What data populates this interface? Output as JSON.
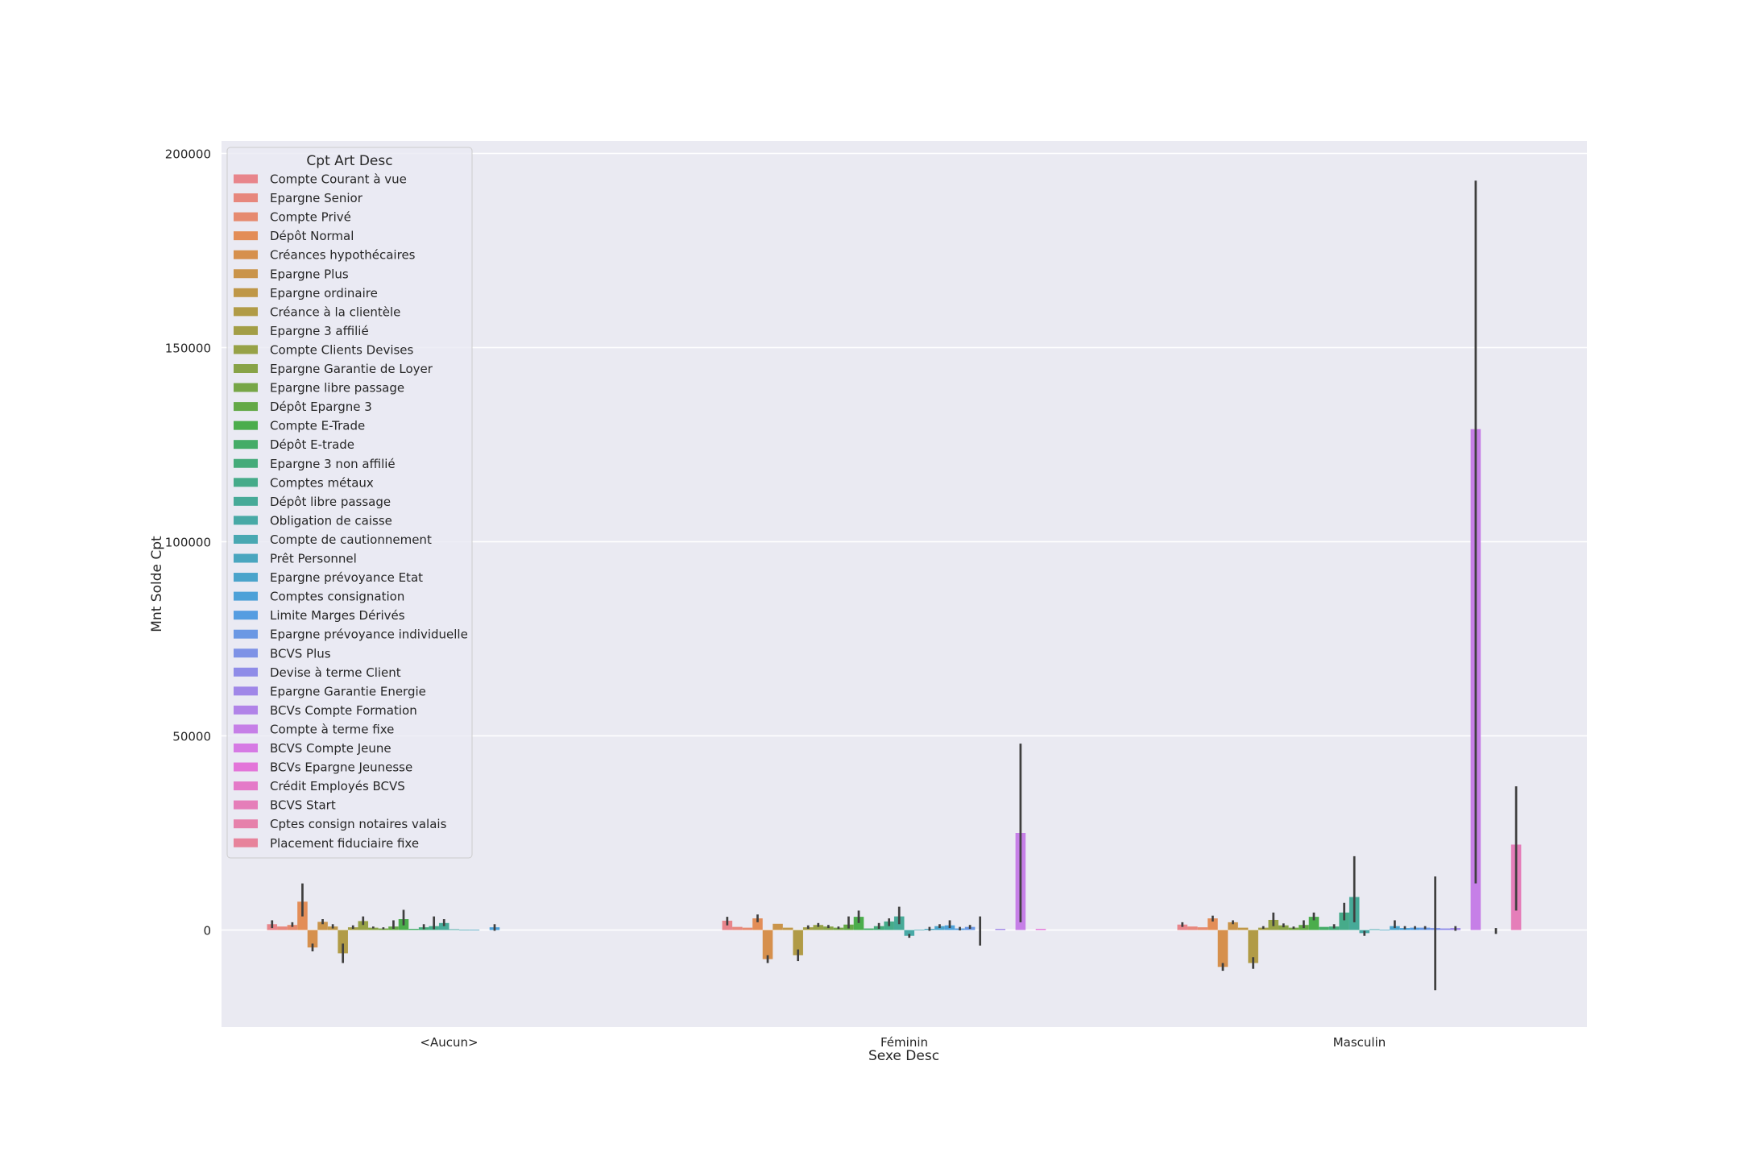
{
  "chart_data": {
    "type": "bar",
    "xlabel": "Sexe Desc",
    "ylabel": "Mnt Solde Cpt",
    "ylim": [
      -25000,
      200000
    ],
    "yticks": [
      0,
      50000,
      100000,
      150000,
      200000
    ],
    "categories": [
      "<Aucun>",
      "Féminin",
      "Masculin"
    ],
    "grid": true,
    "legend_title": "Cpt Art Desc",
    "legend_position": "top-left",
    "series": [
      {
        "name": "Compte Courant à vue",
        "color": "#e8858b",
        "values": [
          1500,
          2400,
          1400
        ],
        "err": [
          [
            500,
            2500
          ],
          [
            1200,
            3400
          ],
          [
            800,
            2000
          ]
        ]
      },
      {
        "name": "Epargne Senior",
        "color": "#e7877d",
        "values": [
          900,
          800,
          900
        ],
        "err": [
          [
            null,
            null
          ],
          [
            null,
            null
          ],
          [
            null,
            null
          ]
        ]
      },
      {
        "name": "Compte Privé",
        "color": "#e68a6f",
        "values": [
          1300,
          600,
          700
        ],
        "err": [
          [
            800,
            2000
          ],
          [
            null,
            null
          ],
          [
            null,
            null
          ]
        ]
      },
      {
        "name": "Dépôt Normal",
        "color": "#e38d57",
        "values": [
          7300,
          3000,
          3000
        ],
        "err": [
          [
            3500,
            12000
          ],
          [
            2000,
            4000
          ],
          [
            2200,
            3700
          ]
        ]
      },
      {
        "name": "Créances hypothécaires",
        "color": "#d6904d",
        "values": [
          -4500,
          -7500,
          -9500
        ],
        "err": [
          [
            -5500,
            -3500
          ],
          [
            -8500,
            -6500
          ],
          [
            -10500,
            -8500
          ]
        ]
      },
      {
        "name": "Epargne Plus",
        "color": "#ca944a",
        "values": [
          2100,
          1600,
          2000
        ],
        "err": [
          [
            1500,
            2800
          ],
          [
            null,
            null
          ],
          [
            1500,
            2500
          ]
        ]
      },
      {
        "name": "Epargne ordinaire",
        "color": "#bf9748",
        "values": [
          900,
          600,
          600
        ],
        "err": [
          [
            400,
            1500
          ],
          [
            null,
            null
          ],
          [
            null,
            null
          ]
        ]
      },
      {
        "name": "Créance à la clientèle",
        "color": "#b19b46",
        "values": [
          -6000,
          -6500,
          -8500
        ],
        "err": [
          [
            -8500,
            -3500
          ],
          [
            -8000,
            -5000
          ],
          [
            -10000,
            -7000
          ]
        ]
      },
      {
        "name": "Epargne 3 affilié",
        "color": "#a39e46",
        "values": [
          700,
          700,
          600
        ],
        "err": [
          [
            300,
            1200
          ],
          [
            300,
            1200
          ],
          [
            300,
            1000
          ]
        ]
      },
      {
        "name": "Compte Clients Devises",
        "color": "#97a247",
        "values": [
          2300,
          1300,
          2600
        ],
        "err": [
          [
            1300,
            3500
          ],
          [
            800,
            1800
          ],
          [
            1000,
            4500
          ]
        ]
      },
      {
        "name": "Epargne Garantie de Loyer",
        "color": "#88a347",
        "values": [
          600,
          900,
          1200
        ],
        "err": [
          [
            400,
            900
          ],
          [
            500,
            1300
          ],
          [
            700,
            1700
          ]
        ]
      },
      {
        "name": "Epargne libre passage",
        "color": "#77a647",
        "values": [
          400,
          600,
          600
        ],
        "err": [
          [
            200,
            700
          ],
          [
            300,
            900
          ],
          [
            300,
            900
          ]
        ]
      },
      {
        "name": "Dépôt Epargne 3",
        "color": "#64a947",
        "values": [
          900,
          1400,
          1300
        ],
        "err": [
          [
            300,
            2500
          ],
          [
            400,
            3500
          ],
          [
            500,
            2500
          ]
        ]
      },
      {
        "name": "Compte E-Trade",
        "color": "#4bad4c",
        "values": [
          2800,
          3400,
          3400
        ],
        "err": [
          [
            1200,
            5200
          ],
          [
            1800,
            5000
          ],
          [
            2500,
            4500
          ]
        ]
      },
      {
        "name": "Dépôt E-trade",
        "color": "#44ac67",
        "values": [
          300,
          400,
          800
        ],
        "err": [
          [
            null,
            null
          ],
          [
            null,
            null
          ],
          [
            null,
            null
          ]
        ]
      },
      {
        "name": "Epargne 3 non affilié",
        "color": "#45ab7a",
        "values": [
          700,
          1000,
          900
        ],
        "err": [
          [
            200,
            1500
          ],
          [
            300,
            1800
          ],
          [
            400,
            1500
          ]
        ]
      },
      {
        "name": "Comptes métaux",
        "color": "#46ab8a",
        "values": [
          1000,
          2200,
          4500
        ],
        "err": [
          [
            200,
            3500
          ],
          [
            1000,
            3000
          ],
          [
            2500,
            7000
          ]
        ]
      },
      {
        "name": "Dépôt libre passage",
        "color": "#47aa98",
        "values": [
          1800,
          3500,
          8500
        ],
        "err": [
          [
            1000,
            2800
          ],
          [
            1500,
            6000
          ],
          [
            2000,
            19000
          ]
        ]
      },
      {
        "name": "Obligation de caisse",
        "color": "#48a9a6",
        "values": [
          200,
          -1500,
          -800
        ],
        "err": [
          [
            null,
            null
          ],
          [
            -2000,
            -1000
          ],
          [
            -1500,
            -200
          ]
        ]
      },
      {
        "name": "Compte de cautionnement",
        "color": "#49a8b2",
        "values": [
          100,
          100,
          200
        ],
        "err": [
          [
            null,
            null
          ],
          [
            null,
            null
          ],
          [
            null,
            null
          ]
        ]
      },
      {
        "name": "Prêt Personnel",
        "color": "#4aa6bf",
        "values": [
          100,
          300,
          100
        ],
        "err": [
          [
            null,
            null
          ],
          [
            -200,
            800
          ],
          [
            null,
            null
          ]
        ]
      },
      {
        "name": "Epargne prévoyance Etat",
        "color": "#4ba4cb",
        "values": [
          0,
          1000,
          1000
        ],
        "err": [
          [
            null,
            null
          ],
          [
            500,
            1500
          ],
          [
            500,
            2500
          ]
        ]
      },
      {
        "name": "Comptes consignation",
        "color": "#4da1d8",
        "values": [
          700,
          1200,
          500
        ],
        "err": [
          [
            -200,
            1500
          ],
          [
            500,
            2500
          ],
          [
            200,
            1000
          ]
        ]
      },
      {
        "name": "Limite Marges Dérivés",
        "color": "#559de1",
        "values": [
          0,
          400,
          600
        ],
        "err": [
          [
            null,
            null
          ],
          [
            -100,
            800
          ],
          [
            200,
            1000
          ]
        ]
      },
      {
        "name": "Epargne prévoyance individuelle",
        "color": "#6b98e4",
        "values": [
          0,
          800,
          600
        ],
        "err": [
          [
            null,
            null
          ],
          [
            300,
            1300
          ],
          [
            200,
            1000
          ]
        ]
      },
      {
        "name": "BCVS Plus",
        "color": "#7e92e6",
        "values": [
          0,
          0,
          500
        ],
        "err": [
          [
            null,
            null
          ],
          [
            -4000,
            3500
          ],
          [
            -15500,
            13800
          ]
        ]
      },
      {
        "name": "Devise à terme Client",
        "color": "#8f8ce8",
        "values": [
          0,
          0,
          400
        ],
        "err": [
          [
            null,
            null
          ],
          [
            null,
            null
          ],
          [
            null,
            null
          ]
        ]
      },
      {
        "name": "Epargne Garantie Energie",
        "color": "#a087e8",
        "values": [
          0,
          300,
          500
        ],
        "err": [
          [
            null,
            null
          ],
          [
            null,
            null
          ],
          [
            -200,
            1000
          ]
        ]
      },
      {
        "name": "BCVs Compte Formation",
        "color": "#b183e8",
        "values": [
          0,
          0,
          0
        ],
        "err": [
          [
            null,
            null
          ],
          [
            null,
            null
          ],
          [
            null,
            null
          ]
        ]
      },
      {
        "name": "Compte à terme fixe",
        "color": "#c67fe7",
        "values": [
          0,
          25000,
          129000
        ],
        "err": [
          [
            null,
            null
          ],
          [
            2000,
            48000
          ],
          [
            12000,
            193000
          ]
        ]
      },
      {
        "name": "BCVS Compte Jeune",
        "color": "#d67ae4",
        "values": [
          0,
          0,
          0
        ],
        "err": [
          [
            null,
            null
          ],
          [
            null,
            null
          ],
          [
            null,
            null
          ]
        ]
      },
      {
        "name": "BCVs Epargne Jeunesse",
        "color": "#e375d9",
        "values": [
          0,
          300,
          0
        ],
        "err": [
          [
            null,
            null
          ],
          [
            null,
            null
          ],
          [
            -1000,
            500
          ]
        ]
      },
      {
        "name": "Crédit Employés BCVS",
        "color": "#e47ac8",
        "values": [
          0,
          0,
          0
        ],
        "err": [
          [
            null,
            null
          ],
          [
            null,
            null
          ],
          [
            null,
            null
          ]
        ]
      },
      {
        "name": "BCVS Start",
        "color": "#e57eb9",
        "values": [
          0,
          0,
          22000
        ],
        "err": [
          [
            null,
            null
          ],
          [
            null,
            null
          ],
          [
            5000,
            37000
          ]
        ]
      },
      {
        "name": "Cptes consign notaires valais",
        "color": "#e681ab",
        "values": [
          0,
          0,
          0
        ],
        "err": [
          [
            null,
            null
          ],
          [
            null,
            null
          ],
          [
            null,
            null
          ]
        ]
      },
      {
        "name": "Placement fiduciaire fixe",
        "color": "#e7839b",
        "values": [
          0,
          0,
          0
        ],
        "err": [
          [
            null,
            null
          ],
          [
            null,
            null
          ],
          [
            null,
            null
          ]
        ]
      }
    ]
  }
}
